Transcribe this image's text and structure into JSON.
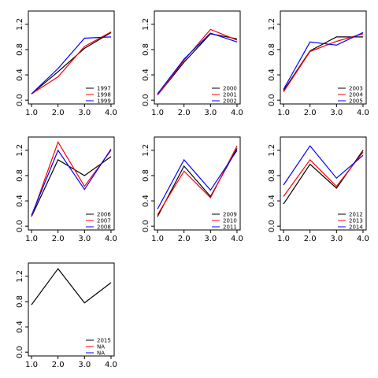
{
  "chart_data": [
    {
      "type": "line",
      "x": [
        1,
        2,
        3,
        4
      ],
      "xlim": [
        0.88,
        4.12
      ],
      "ylim": [
        -0.06,
        1.41
      ],
      "legend": "bottomright",
      "xticks": [
        {
          "value": 1,
          "label": "1.0"
        },
        {
          "value": 2,
          "label": "2.0"
        },
        {
          "value": 3,
          "label": "3.0"
        },
        {
          "value": 4,
          "label": "4.0"
        }
      ],
      "yticks": [
        {
          "value": 0,
          "label": "0.0"
        },
        {
          "value": 0.4,
          "label": "0.4"
        },
        {
          "value": 0.8,
          "label": "0.8"
        },
        {
          "value": 1.2,
          "label": "1.2"
        }
      ],
      "series": [
        {
          "name": "1997",
          "color": "#000000",
          "values": [
            0.1,
            0.45,
            0.82,
            1.07
          ]
        },
        {
          "name": "1998",
          "color": "#ff0000",
          "values": [
            0.1,
            0.37,
            0.85,
            1.08
          ]
        },
        {
          "name": "1999",
          "color": "#0000ff",
          "values": [
            0.1,
            0.5,
            0.98,
            1.0
          ]
        }
      ]
    },
    {
      "type": "line",
      "x": [
        1,
        2,
        3,
        4
      ],
      "xlim": [
        0.88,
        4.12
      ],
      "ylim": [
        -0.06,
        1.41
      ],
      "legend": "bottomright",
      "xticks": [
        {
          "value": 1,
          "label": "1.0"
        },
        {
          "value": 2,
          "label": "2.0"
        },
        {
          "value": 3,
          "label": "3.0"
        },
        {
          "value": 4,
          "label": "4.0"
        }
      ],
      "yticks": [
        {
          "value": 0,
          "label": "0.0"
        },
        {
          "value": 0.4,
          "label": "0.4"
        },
        {
          "value": 0.8,
          "label": "0.8"
        },
        {
          "value": 1.2,
          "label": "1.2"
        }
      ],
      "series": [
        {
          "name": "2000",
          "color": "#000000",
          "values": [
            0.08,
            0.6,
            1.05,
            0.97
          ]
        },
        {
          "name": "2001",
          "color": "#ff0000",
          "values": [
            0.08,
            0.63,
            1.12,
            0.95
          ]
        },
        {
          "name": "2002",
          "color": "#0000ff",
          "values": [
            0.1,
            0.65,
            1.06,
            0.92
          ]
        }
      ]
    },
    {
      "type": "line",
      "x": [
        1,
        2,
        3,
        4
      ],
      "xlim": [
        0.88,
        4.12
      ],
      "ylim": [
        -0.06,
        1.41
      ],
      "legend": "bottomright",
      "xticks": [
        {
          "value": 1,
          "label": "1.0"
        },
        {
          "value": 2,
          "label": "2.0"
        },
        {
          "value": 3,
          "label": "3.0"
        },
        {
          "value": 4,
          "label": "4.0"
        }
      ],
      "yticks": [
        {
          "value": 0,
          "label": "0.0"
        },
        {
          "value": 0.4,
          "label": "0.4"
        },
        {
          "value": 0.8,
          "label": "0.8"
        },
        {
          "value": 1.2,
          "label": "1.2"
        }
      ],
      "series": [
        {
          "name": "2003",
          "color": "#000000",
          "values": [
            0.15,
            0.78,
            1.0,
            1.0
          ]
        },
        {
          "name": "2004",
          "color": "#ff0000",
          "values": [
            0.13,
            0.77,
            0.93,
            1.05
          ]
        },
        {
          "name": "2005",
          "color": "#0000ff",
          "values": [
            0.17,
            0.92,
            0.87,
            1.07
          ]
        }
      ]
    },
    {
      "type": "line",
      "x": [
        1,
        2,
        3,
        4
      ],
      "xlim": [
        0.88,
        4.12
      ],
      "ylim": [
        -0.06,
        1.41
      ],
      "legend": "bottomright",
      "xticks": [
        {
          "value": 1,
          "label": "1.0"
        },
        {
          "value": 2,
          "label": "2.0"
        },
        {
          "value": 3,
          "label": "3.0"
        },
        {
          "value": 4,
          "label": "4.0"
        }
      ],
      "yticks": [
        {
          "value": 0,
          "label": "0.0"
        },
        {
          "value": 0.4,
          "label": "0.4"
        },
        {
          "value": 0.8,
          "label": "0.8"
        },
        {
          "value": 1.2,
          "label": "1.2"
        }
      ],
      "series": [
        {
          "name": "2006",
          "color": "#000000",
          "values": [
            0.15,
            1.05,
            0.8,
            1.1
          ]
        },
        {
          "name": "2007",
          "color": "#ff0000",
          "values": [
            0.15,
            1.33,
            0.63,
            1.2
          ]
        },
        {
          "name": "2008",
          "color": "#0000ff",
          "values": [
            0.17,
            1.2,
            0.58,
            1.22
          ]
        }
      ]
    },
    {
      "type": "line",
      "x": [
        1,
        2,
        3,
        4
      ],
      "xlim": [
        0.88,
        4.12
      ],
      "ylim": [
        -0.06,
        1.41
      ],
      "legend": "bottomright",
      "xticks": [
        {
          "value": 1,
          "label": "1.0"
        },
        {
          "value": 2,
          "label": "2.0"
        },
        {
          "value": 3,
          "label": "3.0"
        },
        {
          "value": 4,
          "label": "4.0"
        }
      ],
      "yticks": [
        {
          "value": 0,
          "label": "0.0"
        },
        {
          "value": 0.4,
          "label": "0.4"
        },
        {
          "value": 0.8,
          "label": "0.8"
        },
        {
          "value": 1.2,
          "label": "1.2"
        }
      ],
      "series": [
        {
          "name": "2009",
          "color": "#000000",
          "values": [
            0.15,
            0.95,
            0.47,
            1.23
          ]
        },
        {
          "name": "2010",
          "color": "#ff0000",
          "values": [
            0.18,
            0.87,
            0.45,
            1.27
          ]
        },
        {
          "name": "2011",
          "color": "#0000ff",
          "values": [
            0.27,
            1.05,
            0.57,
            1.2
          ]
        }
      ]
    },
    {
      "type": "line",
      "x": [
        1,
        2,
        3,
        4
      ],
      "xlim": [
        0.88,
        4.12
      ],
      "ylim": [
        -0.06,
        1.41
      ],
      "legend": "bottomright",
      "xticks": [
        {
          "value": 1,
          "label": "1.0"
        },
        {
          "value": 2,
          "label": "2.0"
        },
        {
          "value": 3,
          "label": "3.0"
        },
        {
          "value": 4,
          "label": "4.0"
        }
      ],
      "yticks": [
        {
          "value": 0,
          "label": "0.0"
        },
        {
          "value": 0.4,
          "label": "0.4"
        },
        {
          "value": 0.8,
          "label": "0.8"
        },
        {
          "value": 1.2,
          "label": "1.2"
        }
      ],
      "series": [
        {
          "name": "2012",
          "color": "#000000",
          "values": [
            0.35,
            0.98,
            0.6,
            1.2
          ]
        },
        {
          "name": "2013",
          "color": "#ff0000",
          "values": [
            0.47,
            1.05,
            0.63,
            1.17
          ]
        },
        {
          "name": "2014",
          "color": "#0000ff",
          "values": [
            0.65,
            1.27,
            0.76,
            1.12
          ]
        }
      ]
    },
    {
      "type": "line",
      "x": [
        1,
        2,
        3,
        4
      ],
      "xlim": [
        0.88,
        4.12
      ],
      "ylim": [
        -0.06,
        1.41
      ],
      "legend": "bottomright",
      "xticks": [
        {
          "value": 1,
          "label": "1.0"
        },
        {
          "value": 2,
          "label": "2.0"
        },
        {
          "value": 3,
          "label": "3.0"
        },
        {
          "value": 4,
          "label": "4.0"
        }
      ],
      "yticks": [
        {
          "value": 0,
          "label": "0.0"
        },
        {
          "value": 0.4,
          "label": "0.4"
        },
        {
          "value": 0.8,
          "label": "0.8"
        },
        {
          "value": 1.2,
          "label": "1.2"
        }
      ],
      "series": [
        {
          "name": "2015",
          "color": "#000000",
          "values": [
            0.75,
            1.32,
            0.78,
            1.1
          ]
        },
        {
          "name": "NA",
          "color": "#ff0000",
          "values": [
            null,
            null,
            null,
            null
          ]
        },
        {
          "name": "NA",
          "color": "#0000ff",
          "values": [
            null,
            null,
            null,
            null
          ]
        }
      ]
    }
  ]
}
